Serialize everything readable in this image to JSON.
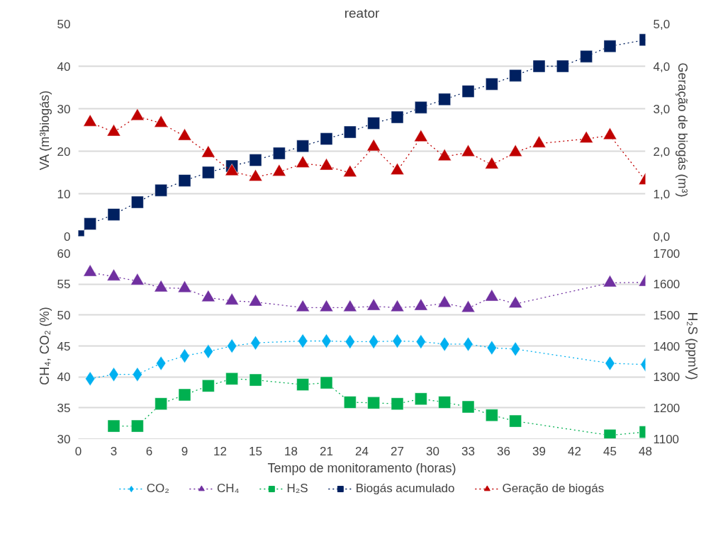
{
  "chart_data": [
    {
      "type": "line",
      "title": "reator",
      "ylabel": "VA (m³biogás)",
      "y2label": "Geração de biogás (m³)",
      "xlim": [
        0,
        48
      ],
      "ylim": [
        0,
        50
      ],
      "yticks": [
        0,
        10,
        20,
        30,
        40,
        50
      ],
      "y2lim": [
        0,
        5
      ],
      "y2ticks": [
        {
          "value": 0,
          "label": "0,0"
        },
        {
          "value": 1,
          "label": "1,0"
        },
        {
          "value": 2,
          "label": "2,0"
        },
        {
          "value": 3,
          "label": "3,0"
        },
        {
          "value": 4,
          "label": "4,0"
        },
        {
          "value": 5,
          "label": "5,0"
        }
      ],
      "tick_labels": "y",
      "grid": "y",
      "legend": "bottom",
      "line_style": "dotted",
      "series": [
        {
          "name": "Biogás acumulado",
          "color": "#002060",
          "marker": "square",
          "x": [
            0,
            1,
            3,
            5,
            7,
            9,
            11,
            13,
            15,
            17,
            19,
            21,
            23,
            25,
            27,
            29,
            31,
            33,
            35,
            37,
            39,
            41,
            43,
            45,
            48
          ],
          "values": [
            0,
            2.9,
            5.1,
            8.0,
            10.8,
            13.1,
            15.0,
            16.5,
            17.9,
            19.5,
            21.2,
            22.9,
            24.5,
            26.6,
            28.0,
            30.3,
            32.2,
            34.1,
            35.8,
            37.8,
            40.0,
            40.0,
            42.3,
            44.7,
            46.2
          ]
        },
        {
          "name": "Geração de biogás",
          "color": "#c00000",
          "marker": "triangle",
          "axis": "y2",
          "x": [
            1,
            3,
            5,
            7,
            9,
            11,
            13,
            15,
            17,
            19,
            21,
            23,
            25,
            27,
            29,
            31,
            33,
            35,
            37,
            39,
            43,
            45,
            48
          ],
          "values": [
            2.68,
            2.45,
            2.82,
            2.66,
            2.35,
            1.95,
            1.52,
            1.39,
            1.51,
            1.71,
            1.65,
            1.49,
            2.1,
            1.54,
            2.32,
            1.87,
            1.97,
            1.68,
            1.97,
            2.18,
            2.29,
            2.37,
            1.31
          ]
        }
      ]
    },
    {
      "type": "line",
      "xlabel": "Tempo de monitoramento (horas)",
      "ylabel": "CH₄, CO₂ (%)",
      "y2label": "H₂S (ppmV)",
      "xlim": [
        0,
        48
      ],
      "xticks": [
        0,
        3,
        6,
        9,
        12,
        15,
        18,
        21,
        24,
        27,
        30,
        33,
        36,
        39,
        42,
        45,
        48
      ],
      "ylim": [
        30,
        60
      ],
      "yticks": [
        30,
        35,
        40,
        45,
        50,
        55,
        60
      ],
      "y2lim": [
        1100,
        1700
      ],
      "y2ticks": [
        1100,
        1200,
        1300,
        1400,
        1500,
        1600,
        1700
      ],
      "grid": "y",
      "legend": "bottom",
      "line_style": "dotted",
      "series": [
        {
          "name": "CO₂",
          "color": "#00b0f0",
          "marker": "diamond",
          "x": [
            1,
            3,
            5,
            7,
            9,
            11,
            13,
            15,
            19,
            21,
            23,
            25,
            27,
            29,
            31,
            33,
            35,
            37,
            45,
            48
          ],
          "values": [
            39.7,
            40.4,
            40.4,
            42.2,
            43.4,
            44.1,
            45.0,
            45.5,
            45.8,
            45.8,
            45.7,
            45.7,
            45.8,
            45.7,
            45.3,
            45.3,
            44.7,
            44.5,
            42.2,
            42.0
          ]
        },
        {
          "name": "CH₄",
          "color": "#7030a0",
          "marker": "triangle",
          "x": [
            1,
            3,
            5,
            7,
            9,
            11,
            13,
            15,
            19,
            21,
            23,
            25,
            27,
            29,
            31,
            33,
            35,
            37,
            45,
            48
          ],
          "values": [
            56.9,
            56.2,
            55.5,
            54.4,
            54.3,
            52.8,
            52.3,
            52.1,
            51.2,
            51.2,
            51.2,
            51.4,
            51.2,
            51.4,
            51.9,
            51.1,
            52.9,
            51.8,
            55.2,
            55.3
          ]
        },
        {
          "name": "H₂S",
          "color": "#00b050",
          "marker": "square",
          "axis": "y2",
          "x": [
            3,
            5,
            7,
            9,
            11,
            13,
            15,
            19,
            21,
            23,
            25,
            27,
            29,
            31,
            33,
            35,
            37,
            45,
            48
          ],
          "values": [
            1141,
            1141,
            1213,
            1242,
            1271,
            1294,
            1290,
            1275,
            1281,
            1218,
            1216,
            1213,
            1229,
            1218,
            1203,
            1176,
            1157,
            1111,
            1122
          ]
        }
      ]
    }
  ]
}
